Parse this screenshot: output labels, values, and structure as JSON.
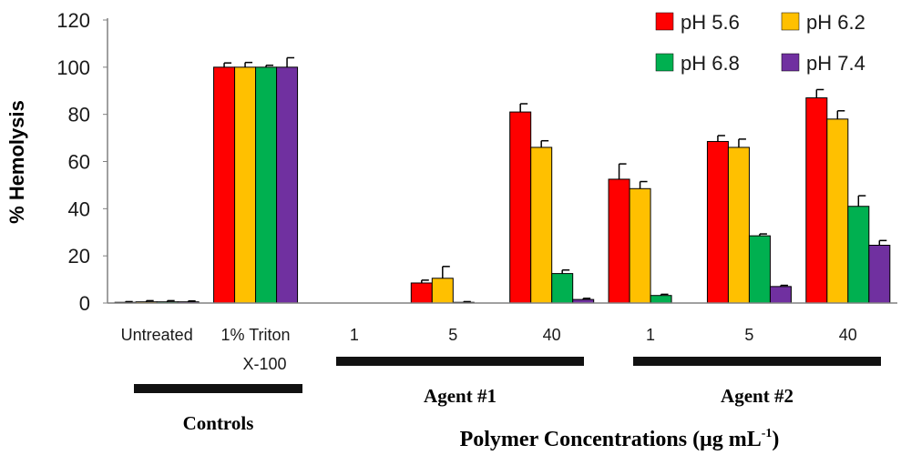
{
  "chart_data": {
    "type": "bar",
    "title": "",
    "ylabel": "% Hemolysis",
    "xlabel": "Polymer Concentrations (μg mL⁻¹)",
    "xlabel_parts": {
      "main": "Polymer Concentrations (μg mL",
      "sup": "-1",
      "close": ")"
    },
    "ylim": [
      0,
      120
    ],
    "yticks": [
      "0",
      "20",
      "40",
      "60",
      "80",
      "100",
      "120"
    ],
    "categories": [
      "Untreated",
      "1% Triton",
      "1",
      "5",
      "40",
      "1",
      "5",
      "40"
    ],
    "category_sublabels": [
      "",
      "X-100",
      "",
      "",
      "",
      "",
      "",
      ""
    ],
    "groups": [
      {
        "label": "Controls",
        "from": 0,
        "to": 1
      },
      {
        "label": "Agent #1",
        "from": 2,
        "to": 4
      },
      {
        "label": "Agent #2",
        "from": 5,
        "to": 7
      }
    ],
    "legend_position": "top-right",
    "series": [
      {
        "name": "pH 5.6",
        "color": "#ff0000",
        "values": [
          0.3,
          100,
          0,
          8.5,
          81,
          52.5,
          68.5,
          87
        ],
        "errors": [
          0.3,
          1.8,
          0,
          1.2,
          3.5,
          6.5,
          2.5,
          3.5
        ]
      },
      {
        "name": "pH 6.2",
        "color": "#ffc000",
        "values": [
          0.5,
          100,
          0,
          10.5,
          66,
          48.5,
          66,
          78
        ],
        "errors": [
          0.5,
          2.0,
          0,
          5.0,
          2.8,
          3.0,
          3.5,
          3.5
        ]
      },
      {
        "name": "pH 6.8",
        "color": "#00b050",
        "values": [
          0.5,
          100,
          0,
          0.3,
          12.5,
          3.2,
          28.5,
          41
        ],
        "errors": [
          0.5,
          0.8,
          0,
          0.3,
          1.5,
          0.5,
          0.8,
          4.5
        ]
      },
      {
        "name": "pH 7.4",
        "color": "#7030a0",
        "values": [
          0.5,
          100,
          0,
          0,
          1.5,
          0,
          7,
          24.5
        ],
        "errors": [
          0.4,
          4.0,
          0,
          0,
          0.5,
          0,
          0.5,
          2.0
        ]
      }
    ]
  }
}
